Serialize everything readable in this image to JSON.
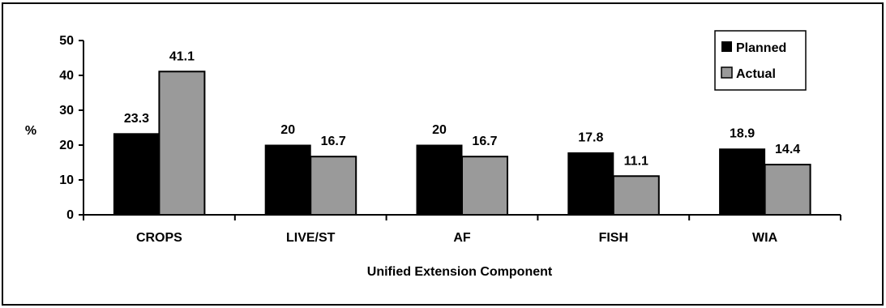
{
  "chart_data": {
    "type": "bar",
    "categories": [
      "CROPS",
      "LIVE/ST",
      "AF",
      "FISH",
      "WIA"
    ],
    "series": [
      {
        "name": "Planned",
        "values": [
          23.3,
          20,
          20,
          17.8,
          18.9
        ],
        "color": "#000000"
      },
      {
        "name": "Actual",
        "values": [
          41.1,
          16.7,
          16.7,
          11.1,
          14.4
        ],
        "color": "#9a9a9a"
      }
    ],
    "data_labels": {
      "Planned": [
        "23.3",
        "20",
        "20",
        "17.8",
        "18.9"
      ],
      "Actual": [
        "41.1",
        "16.7",
        "16.7",
        "11.1",
        "14.4"
      ]
    },
    "title": "",
    "xlabel": "Unified Extension Component",
    "ylabel": "%",
    "ylim": [
      0,
      50
    ],
    "yticks": [
      0,
      10,
      20,
      30,
      40,
      50
    ],
    "grid": false,
    "legend_position": "top-right"
  }
}
